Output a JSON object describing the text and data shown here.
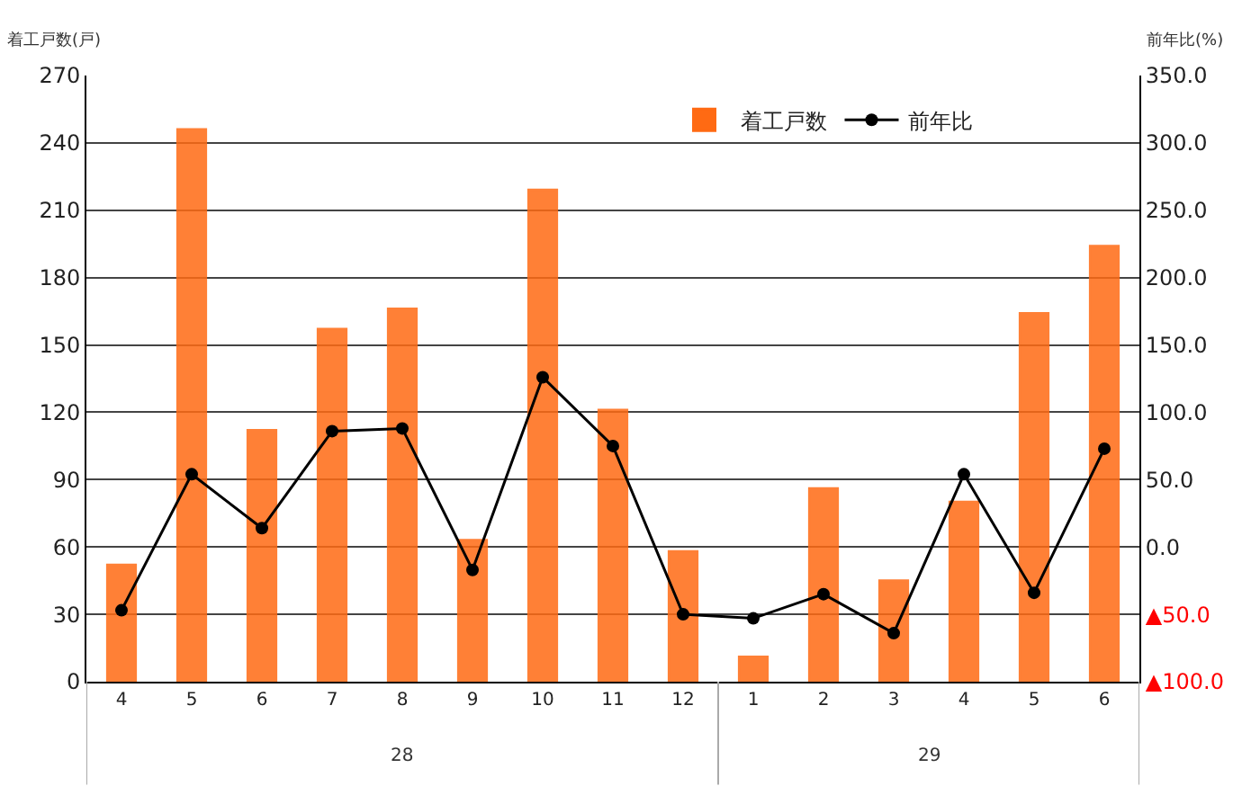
{
  "chart_data": {
    "type": "bar",
    "ylabel": "着工戸数(戸)",
    "y2label": "前年比(%)",
    "categories": [
      "4",
      "5",
      "6",
      "7",
      "8",
      "9",
      "10",
      "11",
      "12",
      "1",
      "2",
      "3",
      "4",
      "5",
      "6"
    ],
    "series": [
      {
        "name": "着工戸数",
        "color": "#ff6a13",
        "values": [
          52,
          246,
          112,
          157,
          166,
          63,
          219,
          121,
          58,
          11,
          86,
          45,
          80,
          164,
          194
        ]
      },
      {
        "name": "前年比",
        "type": "line",
        "axis": "y2",
        "color": "#000000",
        "marker": "circle",
        "values": [
          -47,
          54,
          14,
          86,
          88,
          -17,
          126,
          75,
          -50,
          -53,
          -35,
          -64,
          54,
          -34,
          73
        ]
      }
    ],
    "ylim": [
      0,
      270
    ],
    "yticks": [
      0,
      30,
      60,
      90,
      120,
      150,
      180,
      210,
      240,
      270
    ],
    "y2lim": [
      -100,
      350
    ],
    "y2ticks": [
      {
        "value": -100,
        "label": "▲100.0"
      },
      {
        "value": -50,
        "label": "▲50.0"
      },
      {
        "value": 0,
        "label": "0.0"
      },
      {
        "value": 50,
        "label": "50.0"
      },
      {
        "value": 100,
        "label": "100.0"
      },
      {
        "value": 150,
        "label": "150.0"
      },
      {
        "value": 200,
        "label": "200.0"
      },
      {
        "value": 250,
        "label": "250.0"
      },
      {
        "value": 300,
        "label": "300.0"
      },
      {
        "value": 350,
        "label": "350.0"
      }
    ],
    "annotations": [
      "28",
      "29"
    ],
    "grid": "y",
    "legend": "top right"
  }
}
